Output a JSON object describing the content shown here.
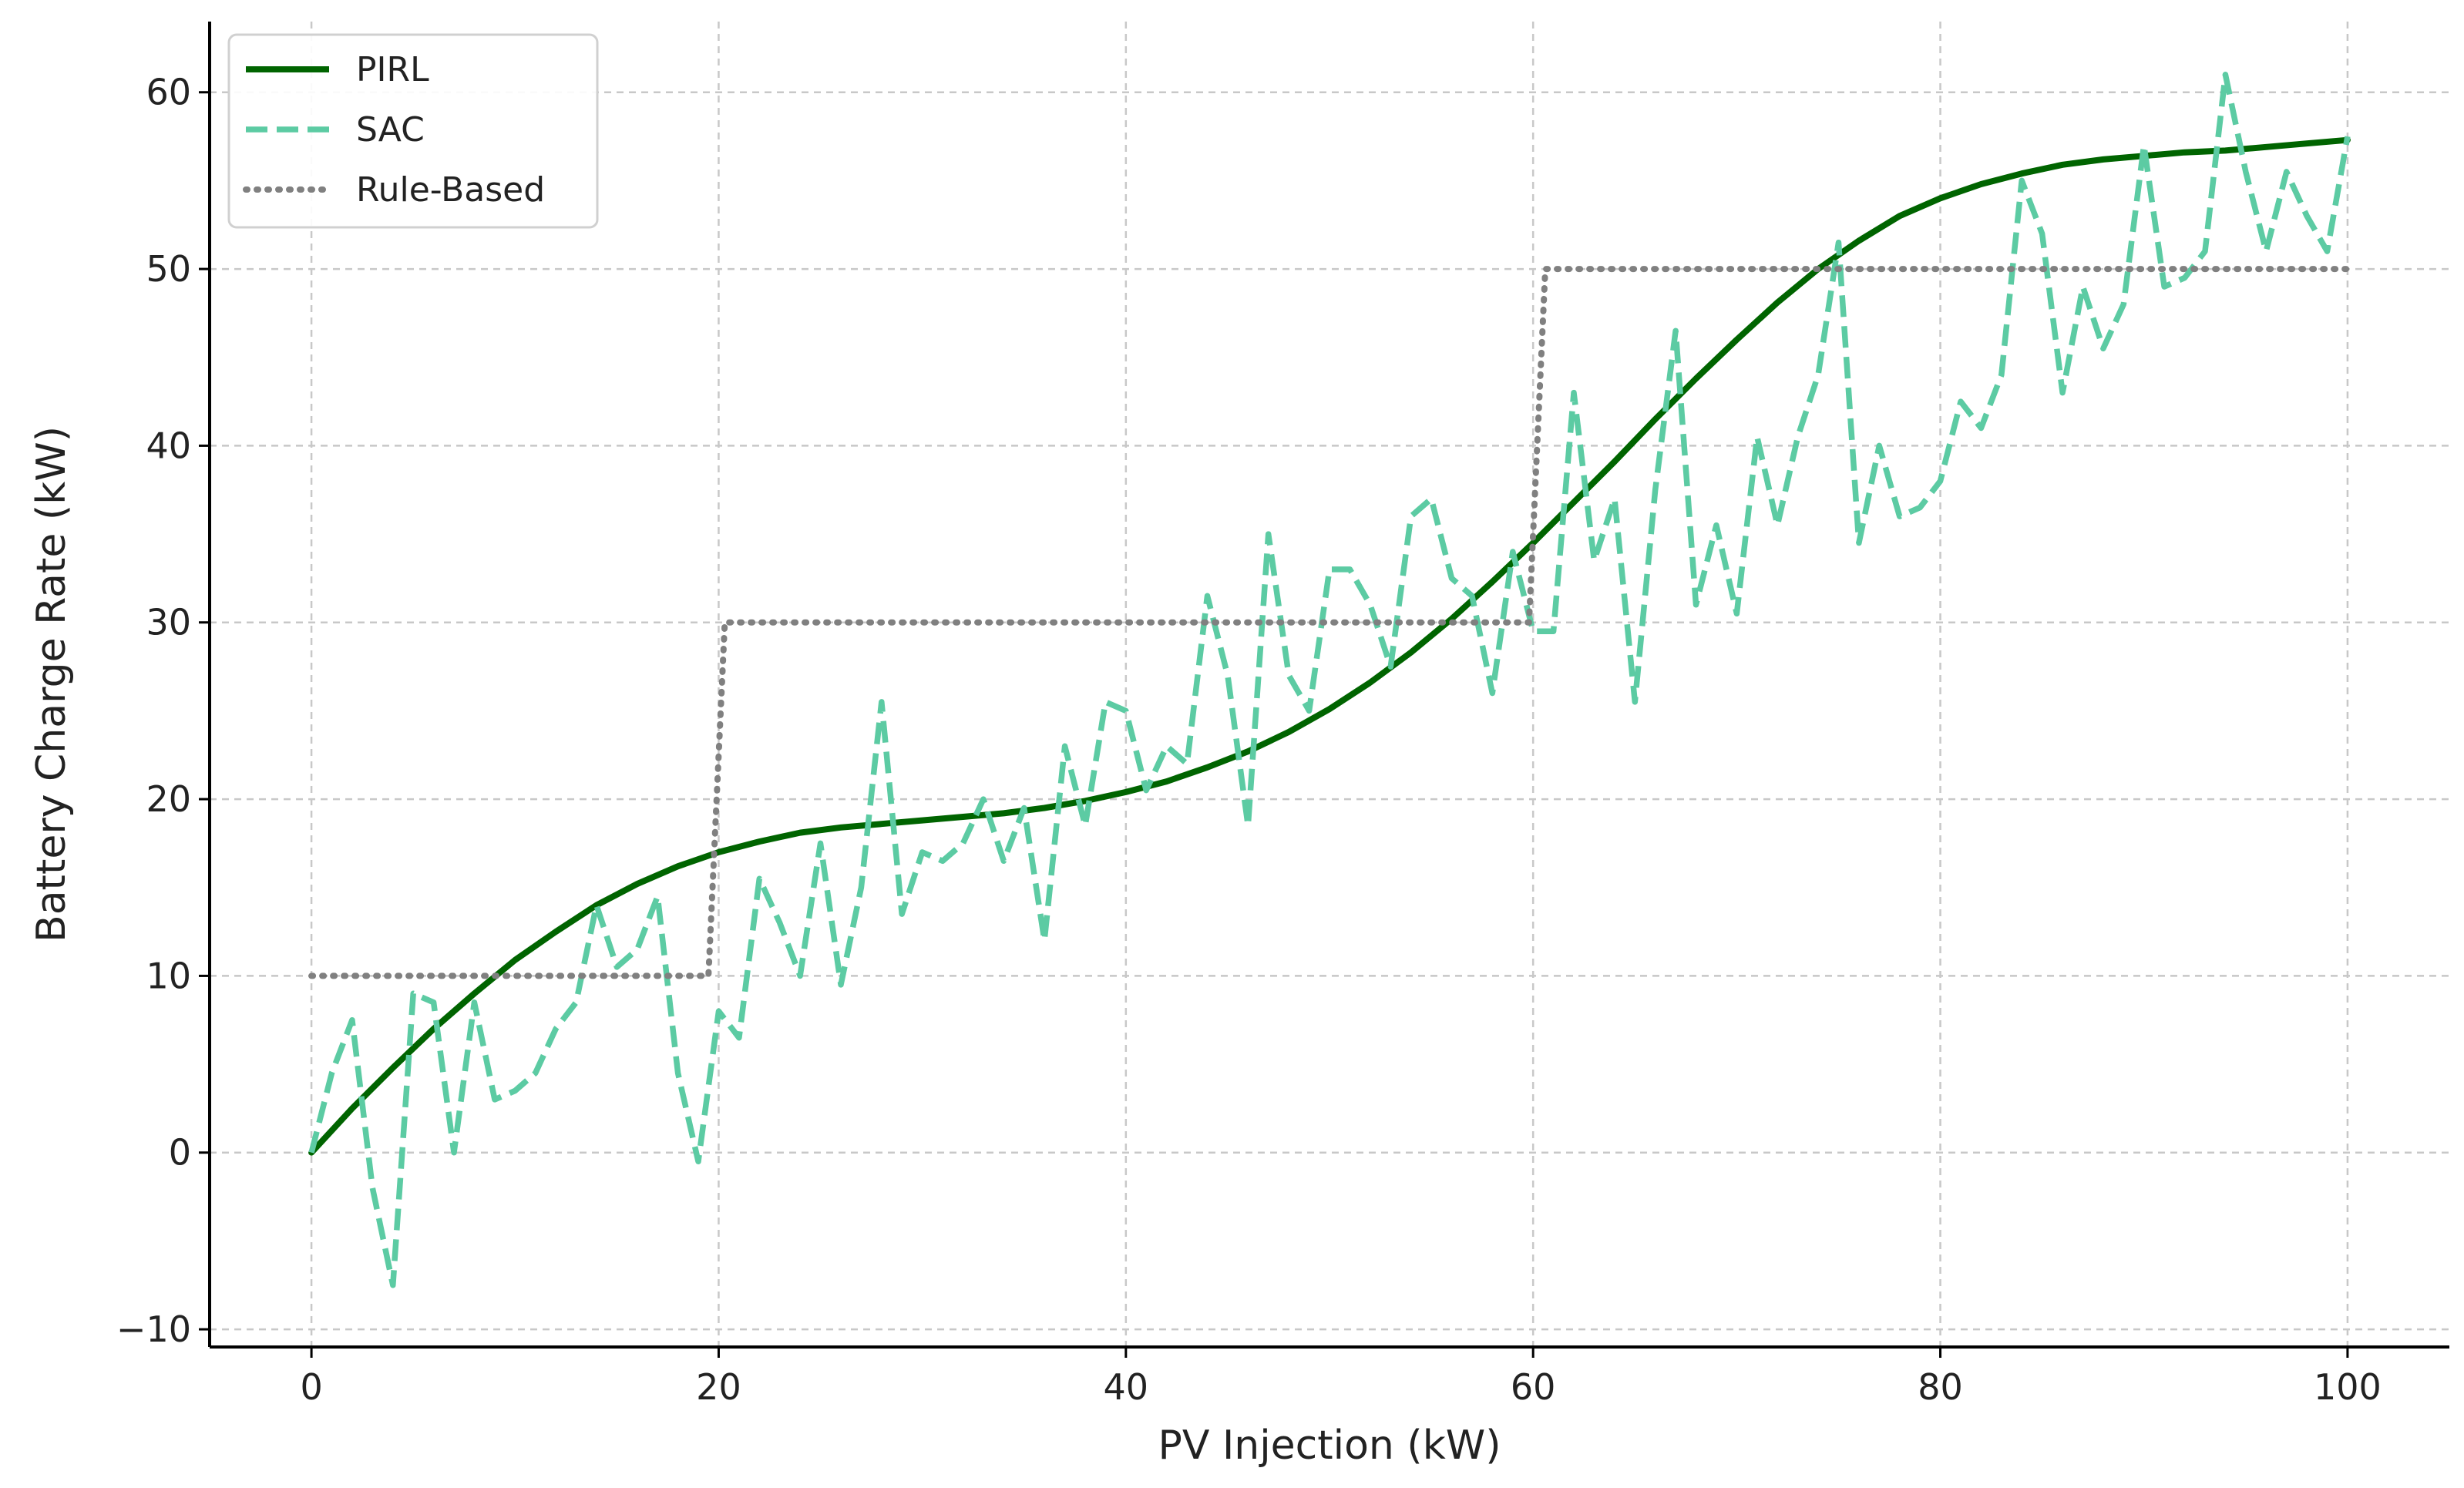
{
  "chart_data": {
    "type": "line",
    "title": "",
    "xlabel": "PV Injection (kW)",
    "ylabel": "Battery Charge Rate (kW)",
    "xlim": [
      -5,
      105
    ],
    "ylim": [
      -11,
      64
    ],
    "xticks": [
      0,
      20,
      40,
      60,
      80,
      100
    ],
    "yticks": [
      -10,
      0,
      10,
      20,
      30,
      40,
      50,
      60
    ],
    "xtick_labels": [
      "0",
      "20",
      "40",
      "60",
      "80",
      "100"
    ],
    "ytick_labels": [
      "−10",
      "0",
      "10",
      "20",
      "30",
      "40",
      "50",
      "60"
    ],
    "grid": true,
    "legend_position": "top-left",
    "series": [
      {
        "name": "PIRL",
        "style": "solid",
        "color": "#006400",
        "x": [
          0,
          2,
          4,
          6,
          8,
          10,
          12,
          14,
          16,
          18,
          20,
          22,
          24,
          26,
          28,
          30,
          32,
          34,
          36,
          38,
          40,
          42,
          44,
          46,
          48,
          50,
          52,
          54,
          56,
          58,
          60,
          62,
          64,
          66,
          68,
          70,
          72,
          74,
          76,
          78,
          80,
          82,
          84,
          86,
          88,
          90,
          92,
          94,
          96,
          98,
          100
        ],
        "y": [
          0,
          2.5,
          4.8,
          7.0,
          9.0,
          10.9,
          12.5,
          14.0,
          15.2,
          16.2,
          17.0,
          17.6,
          18.1,
          18.4,
          18.6,
          18.8,
          19.0,
          19.2,
          19.5,
          19.9,
          20.4,
          21.0,
          21.8,
          22.7,
          23.8,
          25.1,
          26.6,
          28.3,
          30.2,
          32.3,
          34.5,
          36.8,
          39.1,
          41.5,
          43.8,
          46.0,
          48.1,
          50.0,
          51.6,
          53.0,
          54.0,
          54.8,
          55.4,
          55.9,
          56.2,
          56.4,
          56.6,
          56.7,
          56.9,
          57.1,
          57.3
        ]
      },
      {
        "name": "SAC",
        "style": "dashed",
        "color": "#5ccba3",
        "x": [
          0,
          1,
          2,
          3,
          4,
          5,
          6,
          7,
          8,
          9,
          10,
          11,
          12,
          13,
          14,
          15,
          16,
          17,
          18,
          19,
          20,
          21,
          22,
          23,
          24,
          25,
          26,
          27,
          28,
          29,
          30,
          31,
          32,
          33,
          34,
          35,
          36,
          37,
          38,
          39,
          40,
          41,
          42,
          43,
          44,
          45,
          46,
          47,
          48,
          49,
          50,
          51,
          52,
          53,
          54,
          55,
          56,
          57,
          58,
          59,
          60,
          61,
          62,
          63,
          64,
          65,
          66,
          67,
          68,
          69,
          70,
          71,
          72,
          73,
          74,
          75,
          76,
          77,
          78,
          79,
          80,
          81,
          82,
          83,
          84,
          85,
          86,
          87,
          88,
          89,
          90,
          91,
          92,
          93,
          94,
          95,
          96,
          97,
          98,
          99,
          100
        ],
        "y": [
          0,
          4.5,
          7.5,
          -2,
          -7.5,
          9,
          8.5,
          0,
          8.5,
          3,
          3.5,
          4.5,
          7,
          8.5,
          14,
          10.5,
          11.5,
          14.5,
          4.5,
          -0.5,
          8,
          6.5,
          15.5,
          13,
          10,
          17.5,
          9.5,
          15,
          25.5,
          13.5,
          17,
          16.5,
          17.5,
          20,
          16.5,
          19.5,
          12,
          23,
          18.5,
          25.5,
          25,
          20.5,
          23,
          22,
          31.5,
          27,
          18.5,
          35,
          27,
          25,
          33,
          33,
          31,
          27.5,
          36,
          37,
          32.5,
          31.5,
          26,
          34,
          29.5,
          29.5,
          43,
          33.5,
          37,
          25.5,
          37.5,
          46.5,
          31,
          35.5,
          30.5,
          40.5,
          35.5,
          40.5,
          44,
          51.5,
          34.5,
          40,
          36,
          36.5,
          38,
          42.5,
          41,
          44,
          55,
          52,
          43,
          49,
          45.5,
          48,
          57,
          49,
          49.5,
          51,
          61,
          55.5,
          51,
          55.5,
          53,
          51,
          57.5
        ]
      },
      {
        "name": "Rule-Based",
        "style": "dotted",
        "color": "#808080",
        "x": [
          0,
          19.5,
          20.3,
          59.8,
          60.6,
          100
        ],
        "y": [
          10,
          10,
          30,
          30,
          50,
          50
        ]
      }
    ]
  }
}
